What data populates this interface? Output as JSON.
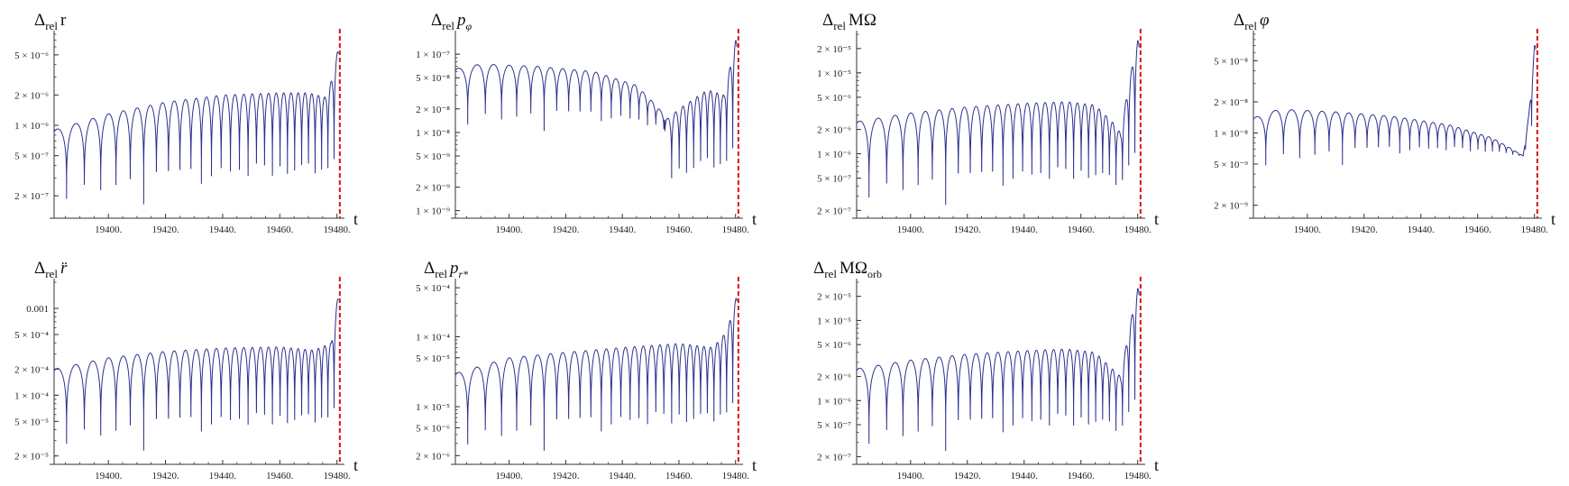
{
  "figure": {
    "axis_variable": "t",
    "separatrix_color": "#dd1111",
    "curve_color": "#2b2f8f"
  },
  "chart_data": [
    {
      "type": "line",
      "title": "Δrel r",
      "title_parts": {
        "delta": "Δ",
        "sub": "rel",
        "symbol": "r",
        "sub2": "",
        "style": "roman"
      },
      "xlabel": "t",
      "y_scale": "log",
      "xlim": [
        19381,
        19482
      ],
      "ylim": [
        1.2e-07,
        8e-06
      ],
      "x_ticks": [
        19400,
        19420,
        19440,
        19460,
        19480
      ],
      "x_tick_labels": [
        "19400.",
        "19420.",
        "19440.",
        "19460.",
        "19480."
      ],
      "y_ticks": [
        5e-06,
        2e-06,
        1e-06,
        5e-07,
        2e-07
      ],
      "y_tick_labels": [
        "5 × 10⁻⁶",
        "2 × 10⁻⁶",
        "1 × 10⁻⁶",
        "5 × 10⁻⁷",
        "2 × 10⁻⁷"
      ],
      "separatrix_t": 19481,
      "series": [
        {
          "envelope_t": [
            19381,
            19400,
            19420,
            19440,
            19460,
            19470,
            19476,
            19478.5,
            19480.5
          ],
          "envelope_y": [
            9e-07,
            1.3e-06,
            1.7e-06,
            2e-06,
            2.1e-06,
            2.1e-06,
            1.9e-06,
            3e-06,
            6e-06
          ],
          "floor_y": [
            1.2e-07,
            1.2e-07
          ],
          "period_t": [
            7.0,
            2.1
          ],
          "end_t": 19480.5
        }
      ]
    },
    {
      "type": "line",
      "title": "Δrel pφ",
      "title_parts": {
        "delta": "Δ",
        "sub": "rel",
        "symbol": "p",
        "sub2": "φ",
        "style": "italic"
      },
      "xlabel": "t",
      "y_scale": "log",
      "xlim": [
        19381,
        19482
      ],
      "ylim": [
        8e-10,
        1.8e-07
      ],
      "x_ticks": [
        19400,
        19420,
        19440,
        19460,
        19480
      ],
      "x_tick_labels": [
        "19400.",
        "19420.",
        "19440.",
        "19460.",
        "19480."
      ],
      "y_ticks": [
        1e-07,
        5e-08,
        2e-08,
        1e-08,
        5e-09,
        2e-09,
        1e-09
      ],
      "y_tick_labels": [
        "1 × 10⁻⁷",
        "5 × 10⁻⁸",
        "2 × 10⁻⁸",
        "1 × 10⁻⁸",
        "5 × 10⁻⁹",
        "2 × 10⁻⁹",
        "1 × 10⁻⁹"
      ],
      "separatrix_t": 19481,
      "series": [
        {
          "envelope_t": [
            19381,
            19390,
            19410,
            19430,
            19445,
            19452,
            19456,
            19460,
            19470,
            19476,
            19480
          ],
          "envelope_y": [
            6.5e-08,
            7.5e-08,
            7e-08,
            6e-08,
            4e-08,
            2.2e-08,
            1.5e-08,
            2e-08,
            3.5e-08,
            3e-08,
            1.5e-07
          ],
          "floor_y": [
            8e-09,
            1e-09
          ],
          "floor_switch_t": 19455,
          "period_t": [
            7.0,
            2.1
          ],
          "end_t": 19480.5
        }
      ]
    },
    {
      "type": "line",
      "title": "Δrel MΩ",
      "title_parts": {
        "delta": "Δ",
        "sub": "rel",
        "symbol": "MΩ",
        "sub2": "",
        "style": "roman"
      },
      "xlabel": "t",
      "y_scale": "log",
      "xlim": [
        19381,
        19482
      ],
      "ylim": [
        1.6e-07,
        3e-05
      ],
      "x_ticks": [
        19400,
        19420,
        19440,
        19460,
        19480
      ],
      "x_tick_labels": [
        "19400.",
        "19420.",
        "19440.",
        "19460.",
        "19480."
      ],
      "y_ticks": [
        2e-05,
        1e-05,
        5e-06,
        2e-06,
        1e-06,
        5e-07,
        2e-07
      ],
      "y_tick_labels": [
        "2 × 10⁻⁵",
        "1 × 10⁻⁵",
        "5 × 10⁻⁶",
        "2 × 10⁻⁶",
        "1 × 10⁻⁶",
        "5 × 10⁻⁷",
        "2 × 10⁻⁷"
      ],
      "separatrix_t": 19481,
      "series": [
        {
          "envelope_t": [
            19381,
            19400,
            19420,
            19440,
            19455,
            19465,
            19471,
            19474,
            19477,
            19480
          ],
          "envelope_y": [
            2.5e-06,
            3.2e-06,
            3.8e-06,
            4.2e-06,
            4.4e-06,
            4e-06,
            2.5e-06,
            1.8e-06,
            8e-06,
            2.5e-05
          ],
          "floor_y": [
            1.6e-07,
            1.6e-07
          ],
          "period_t": [
            7.0,
            2.1
          ],
          "end_t": 19480.5
        }
      ]
    },
    {
      "type": "line",
      "title": "Δrel φ",
      "title_parts": {
        "delta": "Δ",
        "sub": "rel",
        "symbol": "φ",
        "sub2": "",
        "style": "italic"
      },
      "xlabel": "t",
      "y_scale": "log",
      "xlim": [
        19381,
        19482
      ],
      "ylim": [
        1.5e-09,
        9e-08
      ],
      "x_ticks": [
        19400,
        19420,
        19440,
        19460,
        19480
      ],
      "x_tick_labels": [
        "19400.",
        "19420.",
        "19440.",
        "19460.",
        "19480."
      ],
      "y_ticks": [
        5e-08,
        2e-08,
        1e-08,
        5e-09,
        2e-09
      ],
      "y_tick_labels": [
        "5 × 10⁻⁸",
        "2 × 10⁻⁸",
        "1 × 10⁻⁸",
        "5 × 10⁻⁹",
        "2 × 10⁻⁹"
      ],
      "separatrix_t": 19481,
      "series": [
        {
          "envelope_t": [
            19381,
            19390,
            19410,
            19430,
            19450,
            19465,
            19472,
            19476,
            19478,
            19480
          ],
          "envelope_y": [
            1.4e-08,
            1.7e-08,
            1.6e-08,
            1.45e-08,
            1.2e-08,
            9e-09,
            7e-09,
            6e-09,
            1.5e-08,
            7e-08
          ],
          "floor_y": [
            3.5e-09,
            6e-09
          ],
          "period_t": [
            7.0,
            2.1
          ],
          "end_t": 19480.5
        }
      ]
    },
    {
      "type": "line",
      "title": "Δrel r̈",
      "title_parts": {
        "delta": "Δ",
        "sub": "rel",
        "symbol": "r̈",
        "sub2": "",
        "style": "italic"
      },
      "xlabel": "t",
      "y_scale": "log",
      "xlim": [
        19381,
        19482
      ],
      "ylim": [
        1.6e-05,
        0.002
      ],
      "x_ticks": [
        19400,
        19420,
        19440,
        19460,
        19480
      ],
      "x_tick_labels": [
        "19400.",
        "19420.",
        "19440.",
        "19460.",
        "19480."
      ],
      "y_ticks": [
        0.001,
        0.0005,
        0.0002,
        0.0001,
        5e-05,
        2e-05
      ],
      "y_tick_labels": [
        "0.001",
        "5 × 10⁻⁴",
        "2 × 10⁻⁴",
        "1 × 10⁻⁴",
        "5 × 10⁻⁵",
        "2 × 10⁻⁵"
      ],
      "separatrix_t": 19481,
      "series": [
        {
          "envelope_t": [
            19381,
            19400,
            19420,
            19440,
            19460,
            19472,
            19478,
            19480.5
          ],
          "envelope_y": [
            0.0002,
            0.00027,
            0.00032,
            0.00035,
            0.00036,
            0.00033,
            0.0004,
            0.0015
          ],
          "floor_y": [
            1.6e-05,
            1.6e-05
          ],
          "period_t": [
            7.0,
            2.1
          ],
          "end_t": 19480.5
        }
      ]
    },
    {
      "type": "line",
      "title": "Δrel pr*",
      "title_parts": {
        "delta": "Δ",
        "sub": "rel",
        "symbol": "p",
        "sub2": "r*",
        "style": "italic"
      },
      "xlabel": "t",
      "y_scale": "log",
      "xlim": [
        19381,
        19482
      ],
      "ylim": [
        1.5e-06,
        0.0006
      ],
      "x_ticks": [
        19400,
        19420,
        19440,
        19460,
        19480
      ],
      "x_tick_labels": [
        "19400.",
        "19420.",
        "19440.",
        "19460.",
        "19480."
      ],
      "y_ticks": [
        0.0005,
        0.0001,
        5e-05,
        1e-05,
        5e-06,
        2e-06
      ],
      "y_tick_labels": [
        "5 × 10⁻⁴",
        "1 × 10⁻⁴",
        "5 × 10⁻⁵",
        "1 × 10⁻⁵",
        "5 × 10⁻⁶",
        "2 × 10⁻⁶"
      ],
      "separatrix_t": 19481,
      "series": [
        {
          "envelope_t": [
            19381,
            19400,
            19420,
            19440,
            19460,
            19472,
            19477,
            19480.5
          ],
          "envelope_y": [
            3e-05,
            5e-05,
            6e-05,
            7e-05,
            8e-05,
            7e-05,
            0.00012,
            0.0004
          ],
          "floor_y": [
            1.5e-06,
            1.5e-06
          ],
          "period_t": [
            7.0,
            2.1
          ],
          "end_t": 19480.5
        }
      ]
    },
    {
      "type": "line",
      "title": "Δrel MΩorb",
      "title_parts": {
        "delta": "Δ",
        "sub": "rel",
        "symbol": "MΩ",
        "sub2": "orb",
        "style": "roman"
      },
      "xlabel": "t",
      "y_scale": "log",
      "xlim": [
        19381,
        19482
      ],
      "ylim": [
        1.6e-07,
        3e-05
      ],
      "x_ticks": [
        19400,
        19420,
        19440,
        19460,
        19480
      ],
      "x_tick_labels": [
        "19400.",
        "19420.",
        "19440.",
        "19460.",
        "19480."
      ],
      "y_ticks": [
        2e-05,
        1e-05,
        5e-06,
        2e-06,
        1e-06,
        5e-07,
        2e-07
      ],
      "y_tick_labels": [
        "2 × 10⁻⁵",
        "1 × 10⁻⁵",
        "5 × 10⁻⁶",
        "2 × 10⁻⁶",
        "1 × 10⁻⁶",
        "5 × 10⁻⁷",
        "2 × 10⁻⁷"
      ],
      "separatrix_t": 19481,
      "series": [
        {
          "envelope_t": [
            19381,
            19400,
            19420,
            19440,
            19455,
            19465,
            19471,
            19474,
            19477,
            19480
          ],
          "envelope_y": [
            2.5e-06,
            3.2e-06,
            3.8e-06,
            4.2e-06,
            4.4e-06,
            4e-06,
            2.5e-06,
            2e-06,
            8e-06,
            2.5e-05
          ],
          "floor_y": [
            1.6e-07,
            1.6e-07
          ],
          "period_t": [
            7.0,
            2.1
          ],
          "end_t": 19480.5
        }
      ]
    }
  ]
}
